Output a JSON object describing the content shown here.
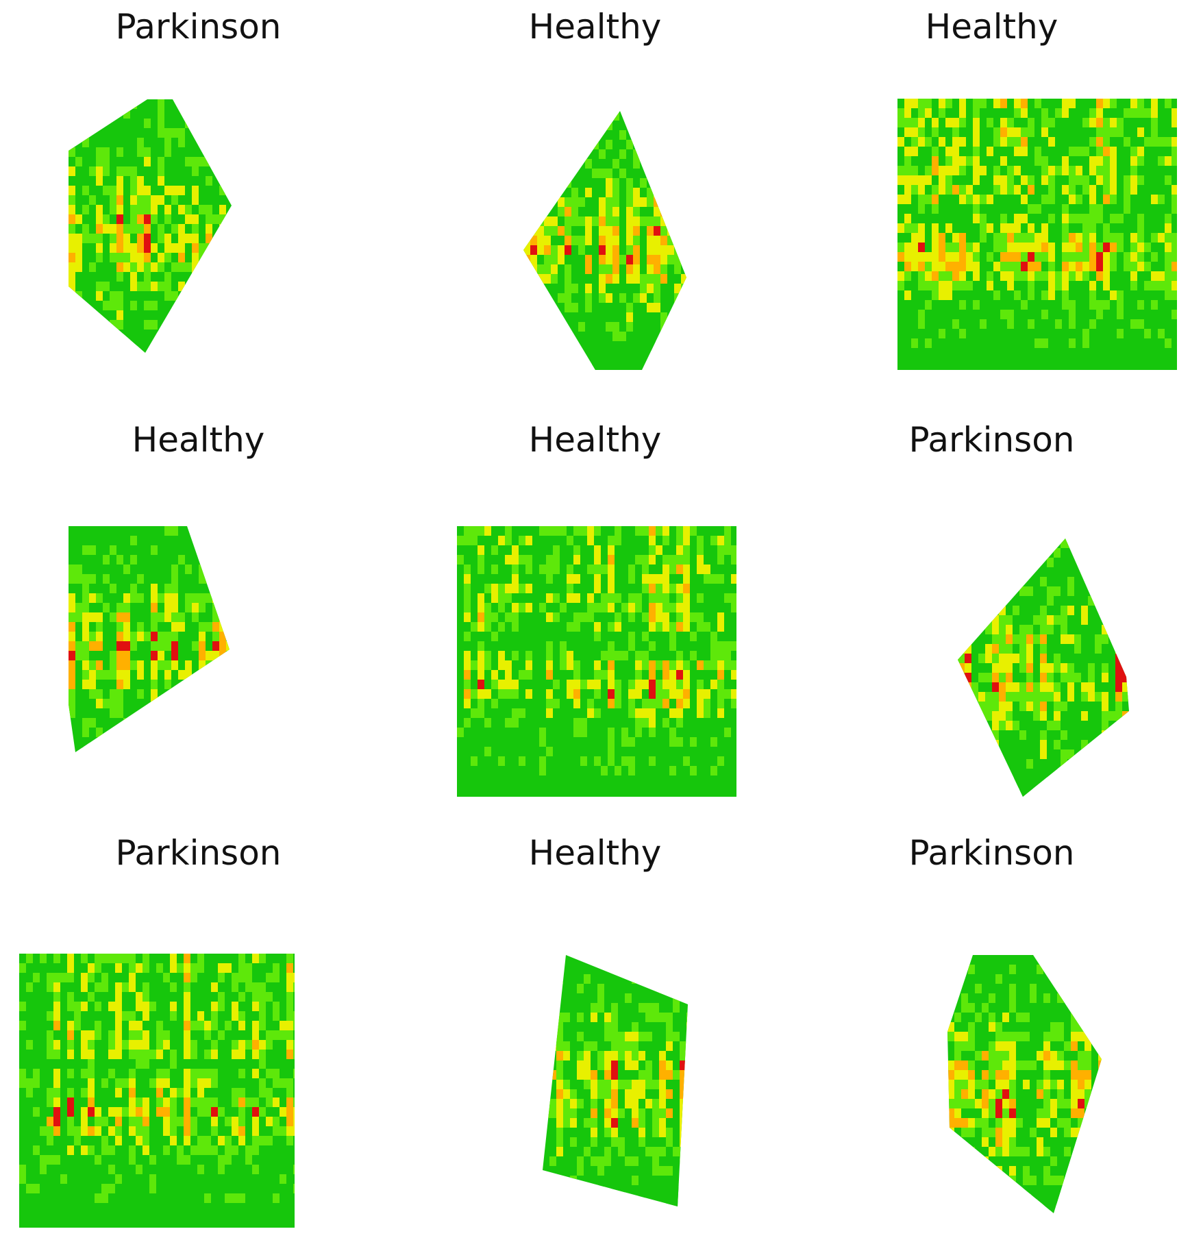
{
  "figure": {
    "panels": [
      {
        "title": "Parkinson",
        "kind": "rotated",
        "seed": 11
      },
      {
        "title": "Healthy",
        "kind": "rotated",
        "seed": 23
      },
      {
        "title": "Healthy",
        "kind": "square",
        "seed": 37
      },
      {
        "title": "Healthy",
        "kind": "rotated",
        "seed": 41
      },
      {
        "title": "Healthy",
        "kind": "square",
        "seed": 53
      },
      {
        "title": "Parkinson",
        "kind": "rotated",
        "seed": 67
      },
      {
        "title": "Parkinson",
        "kind": "square",
        "seed": 71
      },
      {
        "title": "Healthy",
        "kind": "rotated",
        "seed": 83
      },
      {
        "title": "Parkinson",
        "kind": "rotated",
        "seed": 97
      }
    ],
    "palette": {
      "green": "#16c60c",
      "lightgreen": "#5ee80a",
      "yellow": "#e8f000",
      "orange": "#ffb000",
      "red": "#e01010"
    }
  }
}
